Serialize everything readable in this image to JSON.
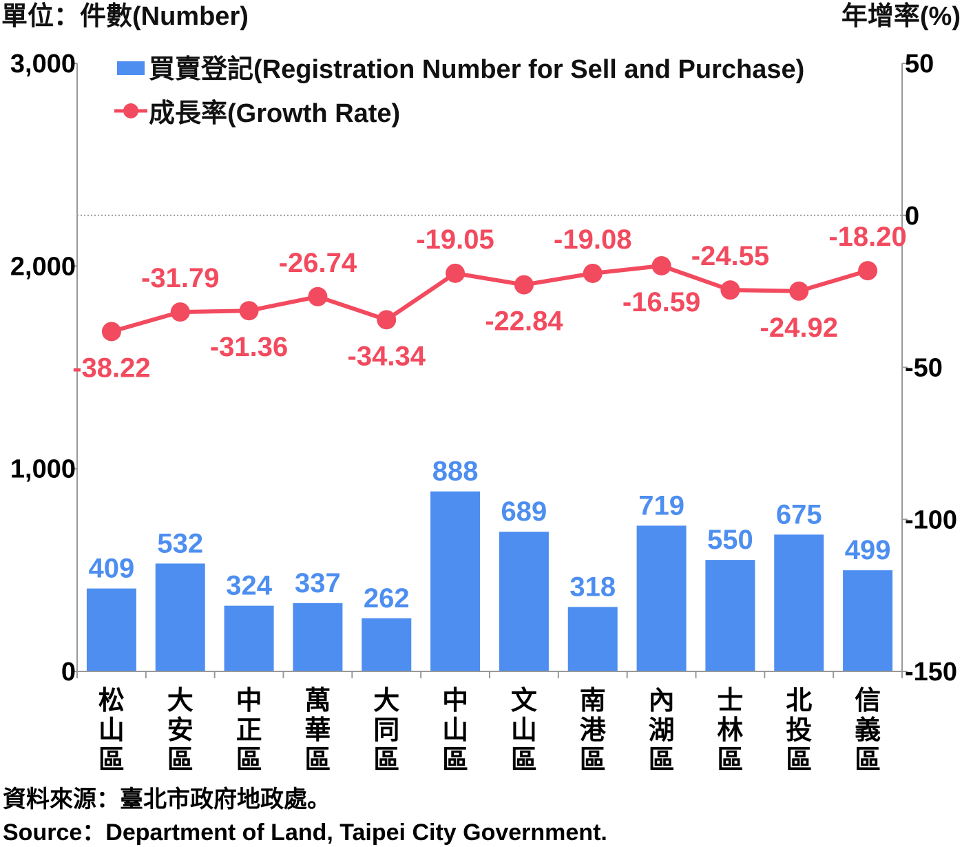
{
  "left_unit_label": "單位：件數(Number)",
  "right_unit_label": "年增率(%)",
  "legend": {
    "bar_label": "買賣登記(Registration Number for Sell and Purchase)",
    "line_label": "成長率(Growth Rate)"
  },
  "colors": {
    "bar": "#4d8ef0",
    "line": "#f24a5e",
    "axis": "#999999"
  },
  "source_line1": "資料來源：臺北市政府地政處。",
  "source_line2": "Source：Department of Land, Taipei City Government.",
  "chart_data": {
    "type": "bar",
    "categories": [
      "松山區",
      "大安區",
      "中正區",
      "萬華區",
      "大同區",
      "中山區",
      "文山區",
      "南港區",
      "內湖區",
      "士林區",
      "北投區",
      "信義區"
    ],
    "series": [
      {
        "name": "買賣登記(Registration Number for Sell and Purchase)",
        "type": "bar",
        "axis": "left",
        "values": [
          409,
          532,
          324,
          337,
          262,
          888,
          689,
          318,
          719,
          550,
          675,
          499
        ],
        "labels": [
          "409",
          "532",
          "324",
          "337",
          "262",
          "888",
          "689",
          "318",
          "719",
          "550",
          "675",
          "499"
        ]
      },
      {
        "name": "成長率(Growth Rate)",
        "type": "line",
        "axis": "right",
        "values": [
          -38.22,
          -31.79,
          -31.36,
          -26.74,
          -34.34,
          -19.05,
          -22.84,
          -19.08,
          -16.59,
          -24.55,
          -24.92,
          -18.2
        ],
        "labels": [
          "-38.22",
          "-31.79",
          "-31.36",
          "-26.74",
          "-34.34",
          "-19.05",
          "-22.84",
          "-19.08",
          "-16.59",
          "-24.55",
          "-24.92",
          "-18.20"
        ],
        "label_positions": [
          "below",
          "above",
          "below",
          "above",
          "below",
          "above",
          "below",
          "above",
          "below",
          "above",
          "below",
          "above"
        ]
      }
    ],
    "y_left": {
      "ylim": [
        0,
        3000
      ],
      "ticks": [
        0,
        1000,
        2000,
        3000
      ],
      "tick_labels": [
        "0",
        "1,000",
        "2,000",
        "3,000"
      ]
    },
    "y_right": {
      "ylim": [
        -150,
        50
      ],
      "ticks": [
        -150,
        -100,
        -50,
        0,
        50
      ],
      "tick_labels": [
        "-150",
        "-100",
        "-50",
        "0",
        "50"
      ]
    },
    "reference_line": {
      "axis": "right",
      "value": 0,
      "style": "dotted"
    },
    "legend_position": "top-left"
  }
}
